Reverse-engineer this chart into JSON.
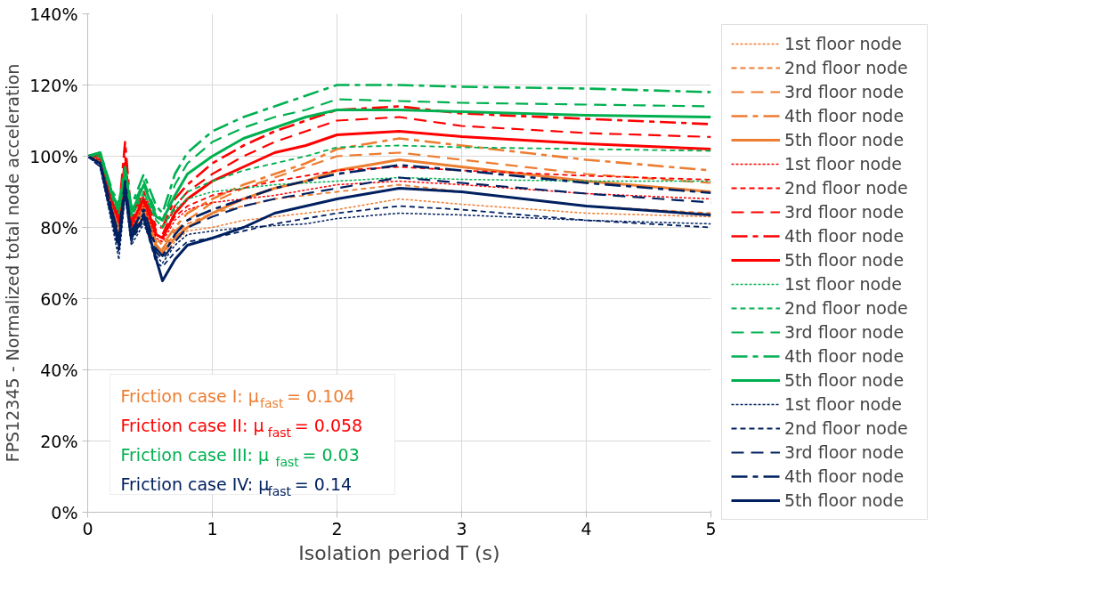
{
  "chart_data": {
    "type": "line",
    "xlabel": "Isolation period T (s)",
    "ylabel": "FPS12345 - Normalized total node acceleration",
    "x": [
      0,
      0.1,
      0.2,
      0.25,
      0.3,
      0.35,
      0.45,
      0.55,
      0.6,
      0.7,
      0.8,
      1,
      1.25,
      1.5,
      1.75,
      2,
      2.5,
      3,
      4,
      5
    ],
    "xlim": [
      0,
      5
    ],
    "xticks": [
      0,
      1,
      2,
      3,
      4,
      5
    ],
    "ylim": [
      0,
      140
    ],
    "yticks": [
      {
        "value": 0,
        "label": "0%"
      },
      {
        "value": 20,
        "label": "20%"
      },
      {
        "value": 40,
        "label": "40%"
      },
      {
        "value": 60,
        "label": "60%"
      },
      {
        "value": 80,
        "label": "80%"
      },
      {
        "value": 100,
        "label": "100%"
      },
      {
        "value": 120,
        "label": "120%"
      },
      {
        "value": 140,
        "label": "140%"
      }
    ],
    "grid": true,
    "legend": "right",
    "marker": "none",
    "annotations": [
      "Friction case I: μ$_{fast}$ = 0.104",
      "Friction case II: μ$_{fast}$ = 0.058",
      "Friction case III: μ$_{fast}$ = 0.03",
      "Friction case IV: μ$_{fast}$ = 0.14"
    ],
    "series": [
      {
        "name": "1st floor node",
        "color": "#ed7d31",
        "line_style": "dotted",
        "values": [
          100,
          99,
          84,
          79,
          92,
          78,
          84,
          74,
          72,
          76,
          79,
          80,
          82,
          83,
          84,
          85,
          88,
          86.5,
          84,
          83
        ]
      },
      {
        "name": "2nd floor node",
        "color": "#ed7d31",
        "line_style": "dashed",
        "values": [
          100,
          99,
          85,
          80,
          93,
          79,
          85,
          75,
          74,
          78,
          81,
          84,
          86,
          88,
          89,
          90,
          92,
          90,
          86,
          84
        ]
      },
      {
        "name": "3rd floor node",
        "color": "#ed7d31",
        "line_style": "long_dashed",
        "values": [
          100,
          99,
          86,
          81,
          95,
          80,
          86,
          76,
          74,
          79,
          82,
          87,
          91,
          94,
          97,
          100,
          101,
          99,
          95,
          92.5
        ]
      },
      {
        "name": "4th floor node",
        "color": "#ed7d31",
        "line_style": "dash_dot",
        "values": [
          100,
          99,
          86,
          82,
          96,
          81,
          87,
          77,
          75,
          80,
          84,
          88,
          92,
          95,
          98,
          102,
          105,
          103,
          99,
          96
        ]
      },
      {
        "name": "5th floor node",
        "color": "#ed7d31",
        "line_style": "solid",
        "values": [
          100,
          99,
          85,
          80,
          94,
          80,
          86,
          75,
          73,
          77,
          80,
          84,
          88,
          91,
          93,
          96,
          99,
          97,
          93,
          90
        ]
      },
      {
        "name": "1st floor node",
        "color": "#ff0000",
        "line_style": "dotted",
        "values": [
          100,
          99,
          86,
          81,
          94,
          80,
          86,
          77,
          76,
          82,
          85,
          87,
          88,
          89,
          90.5,
          92,
          93,
          92,
          89.5,
          88
        ]
      },
      {
        "name": "2nd floor node",
        "color": "#ff0000",
        "line_style": "dashed",
        "values": [
          100,
          99,
          86,
          82,
          96,
          81,
          87,
          78,
          77,
          83,
          86,
          89,
          91,
          93,
          94.5,
          96,
          97,
          96,
          94.5,
          93.4
        ]
      },
      {
        "name": "3rd floor node",
        "color": "#ff0000",
        "line_style": "long_dashed",
        "values": [
          100,
          100,
          87,
          83,
          100,
          82,
          89,
          79,
          78,
          86,
          90,
          95,
          100,
          104,
          107,
          110,
          111,
          108.5,
          106.5,
          105.4
        ]
      },
      {
        "name": "4th floor node",
        "color": "#ff0000",
        "line_style": "dash_dot",
        "values": [
          100,
          100,
          88,
          84,
          104,
          83,
          90,
          80,
          80,
          88,
          92,
          98,
          103,
          107,
          110,
          113,
          114,
          112,
          110.5,
          109
        ]
      },
      {
        "name": "5th floor node",
        "color": "#ff0000",
        "line_style": "solid",
        "values": [
          100,
          100,
          87,
          82,
          98,
          81,
          88,
          78,
          77,
          84,
          88,
          93,
          97,
          101,
          103,
          106,
          107,
          105.5,
          103.5,
          102
        ]
      },
      {
        "name": "1st floor node",
        "color": "#00b050",
        "line_style": "dotted",
        "values": [
          100,
          100,
          88,
          84,
          93,
          83,
          89,
          82,
          80,
          85,
          88,
          90,
          91,
          92,
          92.5,
          93,
          94,
          93.5,
          93,
          93
        ]
      },
      {
        "name": "2nd floor node",
        "color": "#00b050",
        "line_style": "dashed",
        "values": [
          100,
          100,
          88,
          84,
          95,
          83,
          90,
          82,
          80,
          86,
          90,
          93,
          96,
          98,
          100,
          102.5,
          103,
          102.5,
          102,
          101.5
        ]
      },
      {
        "name": "3rd floor node",
        "color": "#00b050",
        "line_style": "long_dashed",
        "values": [
          100,
          101,
          89,
          86,
          96,
          85,
          93,
          84,
          82,
          92,
          98,
          104,
          108,
          111,
          113,
          116,
          115.5,
          115,
          114.5,
          114
        ]
      },
      {
        "name": "4th floor node",
        "color": "#00b050",
        "line_style": "dash_dot",
        "values": [
          100,
          101,
          90,
          87,
          97,
          86,
          95,
          86,
          84,
          95,
          101,
          107,
          111,
          114,
          117,
          120,
          120,
          119.5,
          119,
          118
        ]
      },
      {
        "name": "5th floor node",
        "color": "#00b050",
        "line_style": "solid",
        "values": [
          100,
          101,
          89,
          85,
          96,
          84,
          92,
          83,
          82,
          89,
          95,
          100,
          105,
          108,
          111,
          113,
          113,
          112.5,
          111.5,
          111
        ]
      },
      {
        "name": "1st floor node",
        "color": "#002060",
        "line_style": "dotted",
        "values": [
          100,
          97,
          80,
          71,
          89,
          75,
          81,
          72,
          70,
          75,
          78,
          79,
          80,
          80.5,
          81,
          82.5,
          84,
          83.5,
          82,
          81
        ]
      },
      {
        "name": "2nd floor node",
        "color": "#002060",
        "line_style": "dashed",
        "values": [
          100,
          97,
          81,
          73,
          90,
          76,
          82,
          70,
          69,
          73,
          76,
          77,
          79,
          81,
          82.5,
          84,
          86,
          85,
          82,
          80
        ]
      },
      {
        "name": "3rd floor node",
        "color": "#002060",
        "line_style": "long_dashed",
        "values": [
          100,
          98,
          84,
          77,
          92,
          78,
          84,
          73,
          71,
          76,
          80,
          83,
          86,
          88,
          89.5,
          91,
          94,
          92.5,
          89.5,
          87
        ]
      },
      {
        "name": "4th floor node",
        "color": "#002060",
        "line_style": "dash_dot",
        "values": [
          100,
          98,
          84,
          78,
          93,
          79,
          85,
          74,
          72,
          78,
          82,
          85,
          88,
          91,
          93,
          95,
          97.5,
          96,
          92.5,
          89.7
        ]
      },
      {
        "name": "5th floor node",
        "color": "#002060",
        "line_style": "solid",
        "values": [
          100,
          98,
          82,
          75,
          91,
          77,
          83,
          71,
          65,
          71,
          75,
          77,
          80,
          84,
          86,
          88,
          91,
          90,
          86,
          83.5
        ]
      }
    ]
  }
}
